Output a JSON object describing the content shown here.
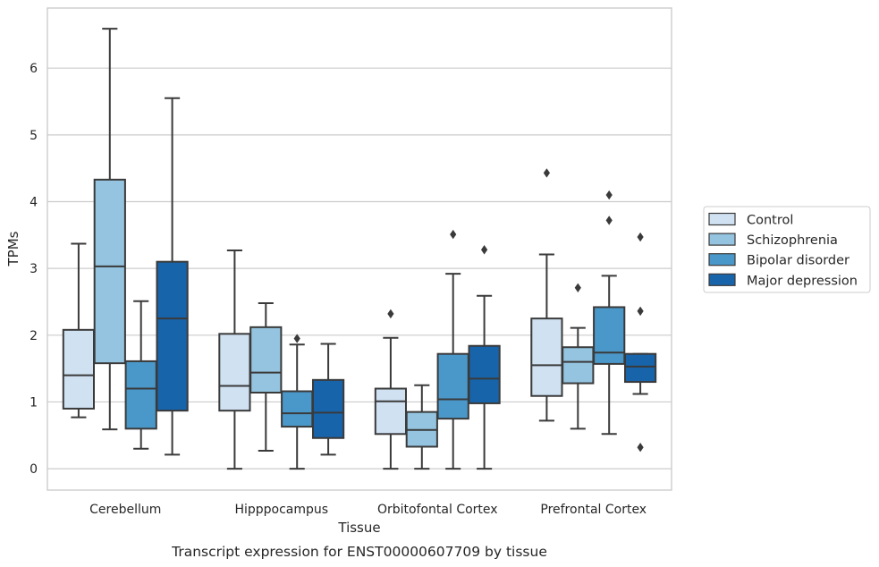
{
  "caption": "Transcript expression for ENST00000607709 by tissue",
  "chart_data": {
    "type": "box",
    "xlabel": "Tissue",
    "ylabel": "TPMs",
    "ylim": [
      -0.32,
      6.9
    ],
    "yticks": [
      0,
      1,
      2,
      3,
      4,
      5,
      6
    ],
    "grid": "horizontal",
    "legend_position": "right",
    "categories": [
      "Cerebellum",
      "Hipppocampus",
      "Orbitofontal Cortex",
      "Prefrontal Cortex"
    ],
    "series": [
      {
        "name": "Control",
        "color": "#d0e1f2",
        "boxes": [
          {
            "whislo": 0.77,
            "q1": 0.9,
            "med": 1.4,
            "q3": 2.08,
            "whishi": 3.37,
            "fliers": []
          },
          {
            "whislo": 0.0,
            "q1": 0.87,
            "med": 1.24,
            "q3": 2.02,
            "whishi": 3.27,
            "fliers": []
          },
          {
            "whislo": 0.0,
            "q1": 0.52,
            "med": 1.01,
            "q3": 1.2,
            "whishi": 1.96,
            "fliers": [
              2.32
            ]
          },
          {
            "whislo": 0.72,
            "q1": 1.09,
            "med": 1.55,
            "q3": 2.25,
            "whishi": 3.21,
            "fliers": [
              4.43
            ]
          }
        ]
      },
      {
        "name": "Schizophrenia",
        "color": "#94c4df",
        "boxes": [
          {
            "whislo": 0.59,
            "q1": 1.58,
            "med": 3.03,
            "q3": 4.33,
            "whishi": 6.59,
            "fliers": []
          },
          {
            "whislo": 0.27,
            "q1": 1.14,
            "med": 1.44,
            "q3": 2.12,
            "whishi": 2.48,
            "fliers": []
          },
          {
            "whislo": 0.0,
            "q1": 0.33,
            "med": 0.58,
            "q3": 0.85,
            "whishi": 1.25,
            "fliers": []
          },
          {
            "whislo": 0.6,
            "q1": 1.28,
            "med": 1.6,
            "q3": 1.82,
            "whishi": 2.11,
            "fliers": [
              2.71
            ]
          }
        ]
      },
      {
        "name": "Bipolar disorder",
        "color": "#4a98c9",
        "boxes": [
          {
            "whislo": 0.3,
            "q1": 0.6,
            "med": 1.2,
            "q3": 1.61,
            "whishi": 2.51,
            "fliers": []
          },
          {
            "whislo": 0.0,
            "q1": 0.63,
            "med": 0.83,
            "q3": 1.16,
            "whishi": 1.86,
            "fliers": [
              1.95
            ]
          },
          {
            "whislo": 0.0,
            "q1": 0.75,
            "med": 1.04,
            "q3": 1.72,
            "whishi": 2.92,
            "fliers": [
              3.51
            ]
          },
          {
            "whislo": 0.52,
            "q1": 1.57,
            "med": 1.74,
            "q3": 2.42,
            "whishi": 2.89,
            "fliers": [
              3.72,
              4.1
            ]
          }
        ]
      },
      {
        "name": "Major depression",
        "color": "#1764ab",
        "boxes": [
          {
            "whislo": 0.21,
            "q1": 0.87,
            "med": 2.25,
            "q3": 3.1,
            "whishi": 5.55,
            "fliers": []
          },
          {
            "whislo": 0.21,
            "q1": 0.46,
            "med": 0.84,
            "q3": 1.33,
            "whishi": 1.87,
            "fliers": []
          },
          {
            "whislo": 0.0,
            "q1": 0.98,
            "med": 1.35,
            "q3": 1.84,
            "whishi": 2.59,
            "fliers": [
              3.28
            ]
          },
          {
            "whislo": 1.12,
            "q1": 1.3,
            "med": 1.53,
            "q3": 1.72,
            "whishi": 1.72,
            "fliers": [
              0.32,
              2.36,
              3.47
            ]
          }
        ]
      }
    ]
  }
}
